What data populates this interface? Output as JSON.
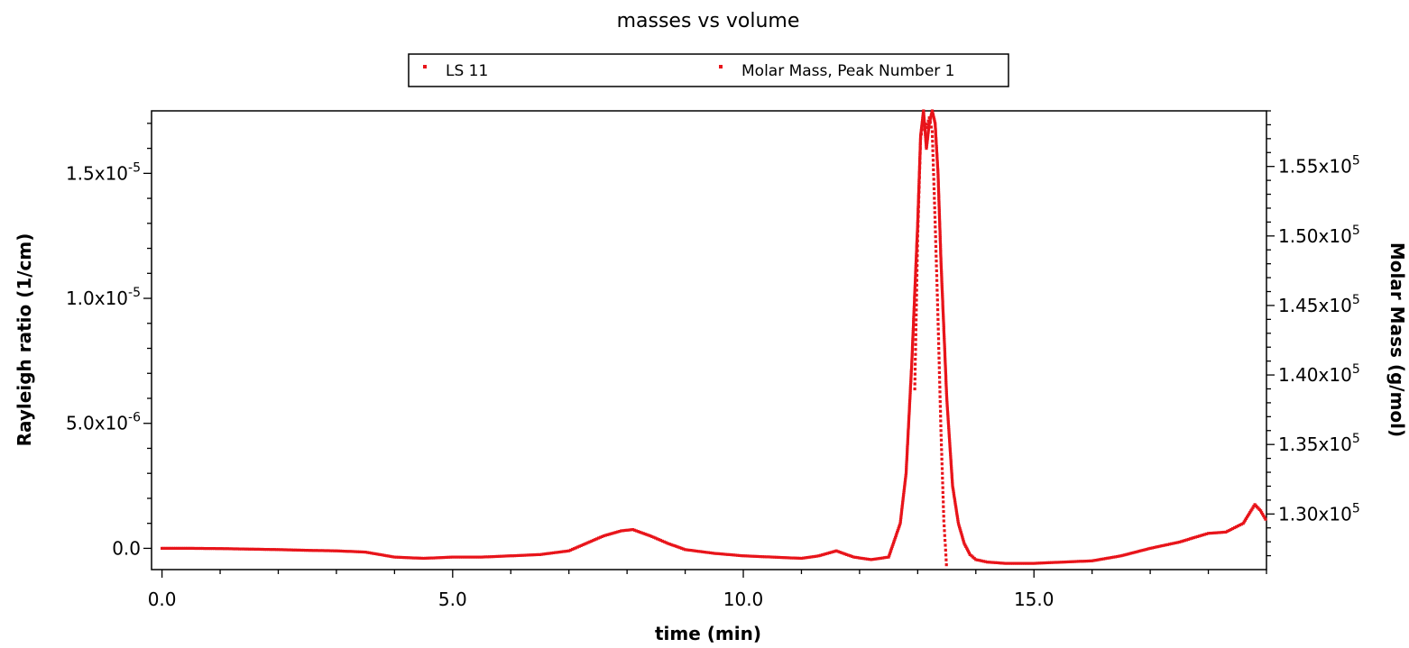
{
  "chart_data": {
    "type": "scatter",
    "title": "masses vs volume",
    "xlabel": "time (min)",
    "ylabel": "Rayleigh ratio (1/cm)",
    "y2label": "Molar Mass (g/mol)",
    "xlim": [
      -0.18,
      19.0
    ],
    "ylim": [
      -8.5e-07,
      1.75e-05
    ],
    "y2lim": [
      126000,
      159000
    ],
    "x_ticks": [
      0,
      5,
      10,
      15
    ],
    "x_tick_labels": [
      "0.0",
      "5.0",
      "10.0",
      "15.0"
    ],
    "y_ticks": [
      0,
      5e-06,
      1e-05,
      1.5e-05
    ],
    "y_tick_labels": [
      {
        "mantissa": "0.0",
        "exponent": ""
      },
      {
        "mantissa": "5.0x10",
        "exponent": "-6"
      },
      {
        "mantissa": "1.0x10",
        "exponent": "-5"
      },
      {
        "mantissa": "1.5x10",
        "exponent": "-5"
      }
    ],
    "y2_ticks": [
      130000,
      135000,
      140000,
      145000,
      150000,
      155000
    ],
    "y2_tick_labels": [
      {
        "mantissa": "1.30x10",
        "exponent": "5"
      },
      {
        "mantissa": "1.35x10",
        "exponent": "5"
      },
      {
        "mantissa": "1.40x10",
        "exponent": "5"
      },
      {
        "mantissa": "1.45x10",
        "exponent": "5"
      },
      {
        "mantissa": "1.50x10",
        "exponent": "5"
      },
      {
        "mantissa": "1.55x10",
        "exponent": "5"
      }
    ],
    "legend": {
      "placement": "top-center",
      "entries": [
        "LS 11",
        "Molar Mass, Peak Number 1"
      ]
    },
    "grid": false,
    "series": [
      {
        "name": "LS 11",
        "axis": "left",
        "color": "#e8141a",
        "x": [
          0.0,
          0.5,
          1.0,
          1.5,
          2.0,
          2.5,
          3.0,
          3.5,
          4.0,
          4.5,
          5.0,
          5.5,
          6.0,
          6.5,
          7.0,
          7.3,
          7.6,
          7.9,
          8.1,
          8.4,
          8.7,
          9.0,
          9.5,
          10.0,
          10.5,
          11.0,
          11.3,
          11.6,
          11.9,
          12.2,
          12.5,
          12.7,
          12.8,
          12.9,
          13.0,
          13.05,
          13.1,
          13.15,
          13.2,
          13.25,
          13.3,
          13.35,
          13.4,
          13.5,
          13.6,
          13.7,
          13.8,
          13.9,
          14.0,
          14.2,
          14.5,
          15.0,
          15.5,
          16.0,
          16.5,
          17.0,
          17.5,
          18.0,
          18.3,
          18.6,
          18.8,
          18.9,
          19.0
        ],
        "y": [
          0.0,
          0.0,
          -1e-08,
          -3e-08,
          -5e-08,
          -8e-08,
          -1e-07,
          -1.5e-07,
          -3.5e-07,
          -4e-07,
          -3.5e-07,
          -3.5e-07,
          -3e-07,
          -2.5e-07,
          -1e-07,
          2e-07,
          5e-07,
          7e-07,
          7.5e-07,
          5e-07,
          2e-07,
          -5e-08,
          -2e-07,
          -3e-07,
          -3.5e-07,
          -4e-07,
          -3e-07,
          -1e-07,
          -3.5e-07,
          -4.5e-07,
          -3.5e-07,
          1e-06,
          3e-06,
          7.5e-06,
          1.3e-05,
          1.65e-05,
          1.75e-05,
          1.6e-05,
          1.7e-05,
          1.75e-05,
          1.7e-05,
          1.5e-05,
          1.15e-05,
          6e-06,
          2.5e-06,
          1e-06,
          2e-07,
          -2.5e-07,
          -4.5e-07,
          -5.5e-07,
          -6e-07,
          -6e-07,
          -5.5e-07,
          -5e-07,
          -3e-07,
          0.0,
          2.5e-07,
          6e-07,
          6.5e-07,
          1e-06,
          1.75e-06,
          1.5e-06,
          1.1e-06
        ]
      },
      {
        "name": "Molar Mass, Peak Number 1",
        "axis": "right",
        "color": "#e8141a",
        "x": [
          12.95,
          13.0,
          13.05,
          13.1,
          13.15,
          13.2,
          13.25,
          13.3,
          13.35,
          13.4,
          13.45,
          13.5
        ],
        "y": [
          139000,
          150000,
          157000,
          158300,
          157800,
          158500,
          157500,
          151000,
          144000,
          136000,
          129500,
          126000
        ]
      }
    ]
  }
}
